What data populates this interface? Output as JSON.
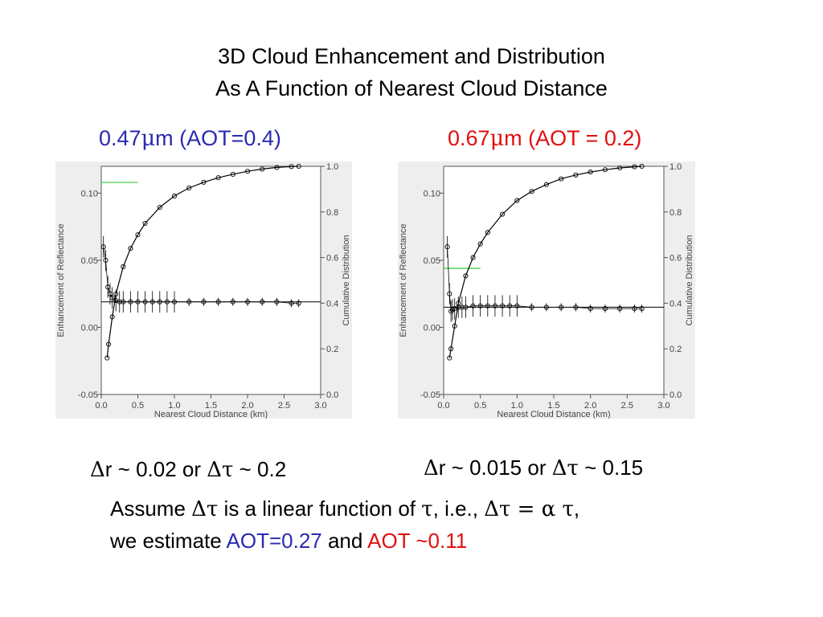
{
  "slide": {
    "title_line1": "3D Cloud Enhancement and Distribution",
    "title_line2": "As A Function of Nearest Cloud Distance",
    "left_header": {
      "prefix": "0.47",
      "mu": "μ",
      "suffix": "m (AOT=0.4)",
      "color": "#2a2ab0"
    },
    "right_header": {
      "prefix": "0.67",
      "mu": "μ",
      "suffix": "m (AOT = 0.2)",
      "color": "#e01010"
    },
    "left_result": {
      "delta1": "Δ",
      "part1": "r ~ 0.02 or ",
      "delta2": "Δτ",
      "part2": " ~ 0.2"
    },
    "right_result": {
      "delta1": "Δ",
      "part1": "r ~ 0.015 or ",
      "delta2": "Δτ",
      "part2": " ~ 0.15"
    },
    "note": {
      "p1": "Assume ",
      "s1": "Δτ",
      "p2": " is a linear function of ",
      "s2": "τ",
      "p3": ", i.e., ",
      "s3": "Δτ = α τ",
      "p4": ",",
      "p5": "we estimate ",
      "aot1": "AOT=0.27",
      "p6": " and ",
      "aot2": "AOT ~0.11",
      "aot1_color": "#2a2ab0",
      "aot2_color": "#e01010"
    }
  },
  "chart_data": [
    {
      "type": "scatter",
      "xlabel": "Nearest Cloud Distance (km)",
      "ylabel": "Enhancement of Reflectance",
      "y2label": "Cumulative Distribution",
      "xlim": [
        0,
        3
      ],
      "ylim": [
        -0.05,
        0.12
      ],
      "y2lim": [
        0,
        1
      ],
      "xticks": [
        "0.0",
        "0.5",
        "1.0",
        "1.5",
        "2.0",
        "2.5",
        "3.0"
      ],
      "yticks": [
        "-0.05",
        "0.00",
        "0.05",
        "0.10"
      ],
      "y2ticks": [
        "0.0",
        "0.2",
        "0.4",
        "0.6",
        "0.8",
        "1.0"
      ],
      "mean_line": 0.019,
      "green_marker": {
        "y": 0.108,
        "x": [
          0,
          0.5
        ]
      },
      "enhancement": {
        "x": [
          0.03,
          0.06,
          0.09,
          0.12,
          0.15,
          0.2,
          0.25,
          0.3,
          0.4,
          0.5,
          0.6,
          0.7,
          0.8,
          0.9,
          1.0,
          1.2,
          1.4,
          1.6,
          1.8,
          2.0,
          2.2,
          2.4,
          2.6,
          2.7
        ],
        "y": [
          0.06,
          0.05,
          0.03,
          0.025,
          0.022,
          0.02,
          0.019,
          0.019,
          0.019,
          0.019,
          0.019,
          0.019,
          0.019,
          0.019,
          0.019,
          0.019,
          0.019,
          0.019,
          0.019,
          0.019,
          0.019,
          0.019,
          0.018,
          0.018
        ]
      },
      "cumulative": {
        "x": [
          0.08,
          0.1,
          0.15,
          0.2,
          0.3,
          0.4,
          0.5,
          0.6,
          0.8,
          1.0,
          1.2,
          1.4,
          1.6,
          1.8,
          2.0,
          2.2,
          2.4,
          2.6,
          2.7
        ],
        "y": [
          0.16,
          0.22,
          0.34,
          0.44,
          0.56,
          0.64,
          0.7,
          0.75,
          0.82,
          0.87,
          0.905,
          0.93,
          0.95,
          0.965,
          0.978,
          0.988,
          0.995,
          0.999,
          1.0
        ]
      }
    },
    {
      "type": "scatter",
      "xlabel": "Nearest Cloud Distance (km)",
      "ylabel": "Enhancement of Reflectance",
      "y2label": "Cumulative Distribution",
      "xlim": [
        0,
        3
      ],
      "ylim": [
        -0.05,
        0.12
      ],
      "y2lim": [
        0,
        1
      ],
      "xticks": [
        "0.0",
        "0.5",
        "1.0",
        "1.5",
        "2.0",
        "2.5",
        "3.0"
      ],
      "yticks": [
        "-0.05",
        "0.00",
        "0.05",
        "0.10"
      ],
      "y2ticks": [
        "0.0",
        "0.2",
        "0.4",
        "0.6",
        "0.8",
        "1.0"
      ],
      "mean_line": 0.015,
      "green_marker": {
        "y": 0.044,
        "x": [
          0,
          0.5
        ]
      },
      "enhancement": {
        "x": [
          0.05,
          0.08,
          0.1,
          0.12,
          0.15,
          0.2,
          0.25,
          0.3,
          0.4,
          0.5,
          0.6,
          0.7,
          0.8,
          0.9,
          1.0,
          1.2,
          1.4,
          1.6,
          1.8,
          2.0,
          2.2,
          2.4,
          2.6,
          2.7
        ],
        "y": [
          0.06,
          0.025,
          0.012,
          0.013,
          0.014,
          0.015,
          0.015,
          0.015,
          0.016,
          0.016,
          0.016,
          0.016,
          0.016,
          0.016,
          0.016,
          0.015,
          0.015,
          0.015,
          0.015,
          0.014,
          0.014,
          0.014,
          0.014,
          0.014
        ]
      },
      "cumulative": {
        "x": [
          0.08,
          0.1,
          0.15,
          0.2,
          0.3,
          0.4,
          0.5,
          0.6,
          0.8,
          1.0,
          1.2,
          1.4,
          1.6,
          1.8,
          2.0,
          2.2,
          2.4,
          2.6,
          2.7
        ],
        "y": [
          0.16,
          0.2,
          0.3,
          0.4,
          0.52,
          0.6,
          0.66,
          0.71,
          0.79,
          0.85,
          0.89,
          0.92,
          0.945,
          0.962,
          0.975,
          0.985,
          0.993,
          0.998,
          1.0
        ]
      }
    }
  ]
}
